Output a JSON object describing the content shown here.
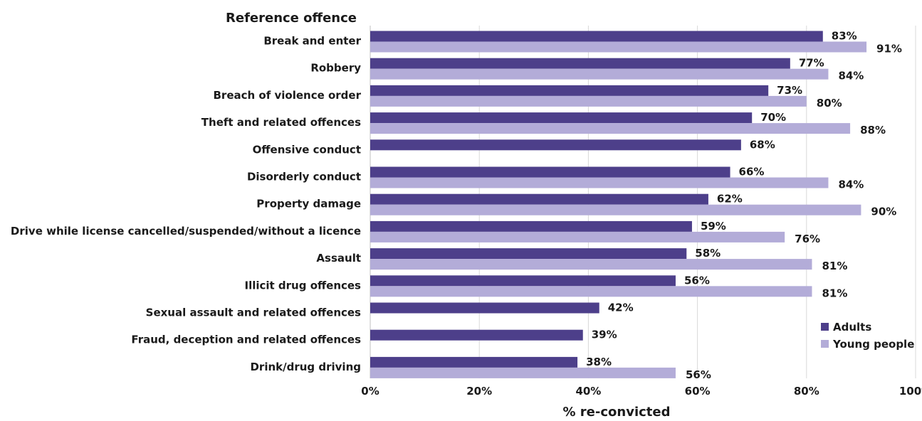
{
  "chart_data": {
    "type": "bar",
    "orientation": "horizontal",
    "ytitle": "Reference offence",
    "xlabel": "% re-convicted",
    "xlim": [
      0,
      100
    ],
    "xticks": [
      "0%",
      "20%",
      "40%",
      "60%",
      "80%",
      "100%"
    ],
    "grid": true,
    "legend_position": "right",
    "categories": [
      "Break and enter",
      "Robbery",
      "Breach of violence order",
      "Theft and related offences",
      "Offensive conduct",
      "Disorderly conduct",
      "Property damage",
      "Drive while license cancelled/suspended/without a licence",
      "Assault",
      "Illicit drug offences",
      "Sexual assault and related offences",
      "Fraud, deception and related offences",
      "Drink/drug driving"
    ],
    "series": [
      {
        "name": "Adults",
        "color": "#4d3f8a",
        "values": [
          83,
          77,
          73,
          70,
          68,
          66,
          62,
          59,
          58,
          56,
          42,
          39,
          38
        ],
        "labels": [
          "83%",
          "77%",
          "73%",
          "70%",
          "68%",
          "66%",
          "62%",
          "59%",
          "58%",
          "56%",
          "42%",
          "39%",
          "38%"
        ]
      },
      {
        "name": "Young people",
        "color": "#b3acd8",
        "values": [
          91,
          84,
          80,
          88,
          null,
          84,
          90,
          76,
          81,
          81,
          null,
          null,
          56
        ],
        "labels": [
          "91%",
          "84%",
          "80%",
          "88%",
          "",
          "84%",
          "90%",
          "76%",
          "81%",
          "81%",
          "",
          "",
          "56%"
        ]
      }
    ]
  }
}
